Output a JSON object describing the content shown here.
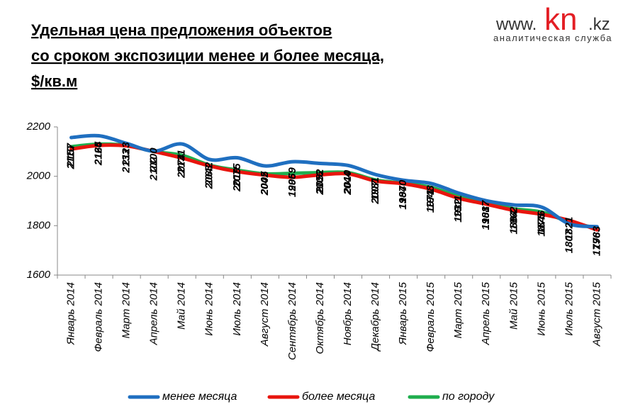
{
  "chart_data": {
    "type": "line",
    "title": [
      "Удельная цена предложения  объектов",
      "со сроком экспозиции менее и более месяца,",
      "$/кв.м"
    ],
    "logo": {
      "prefix": "www.",
      "brand": "kn",
      "suffix": ".kz",
      "tagline": "аналитическая служба"
    },
    "categories": [
      "Январь 2014",
      "Февраль 2014",
      "Март 2014",
      "Апрель 2014",
      "Май 2014",
      "Июнь 2014",
      "Июль 2014",
      "Август 2014",
      "Сентябрь 2014",
      "Октябрь 2014",
      "Ноябрь 2014",
      "Декабрь 2014",
      "Январь 2015",
      "Февраль 2015",
      "Март 2015",
      "Апрель 2015",
      "Май 2015",
      "Июнь 2015",
      "Июль 2015",
      "Август 2015"
    ],
    "series": [
      {
        "name": "менее месяца",
        "color": "#1f6fc0",
        "labels": "above",
        "values": [
          2157,
          2164,
          2133,
          2102,
          2131,
          2068,
          2075,
          2042,
          2059,
          2052,
          2044,
          2007,
          1984,
          1971,
          1932,
          1901,
          1884,
          1875,
          1807,
          1796
        ]
      },
      {
        "name": "более месяца",
        "color": "#e8150e",
        "labels": "below",
        "values": [
          2110,
          2125,
          2123,
          2100,
          2074,
          2042,
          2019,
          2005,
          1996,
          2006,
          2010,
          1981,
          1970,
          1948,
          1911,
          1887,
          1862,
          1846,
          1821,
          1783
        ]
      },
      {
        "name": "по городу",
        "color": "#1fae4e",
        "values": [
          2120,
          2130,
          2125,
          2100,
          2085,
          2045,
          2025,
          2010,
          2012,
          2015,
          2015,
          1985,
          1972,
          1955,
          1918,
          1892,
          1868,
          1855,
          1815,
          1790
        ]
      }
    ],
    "ylim": [
      1600,
      2200
    ],
    "yticks": [
      1600,
      1800,
      2000,
      2200
    ],
    "legend": "bottom"
  }
}
